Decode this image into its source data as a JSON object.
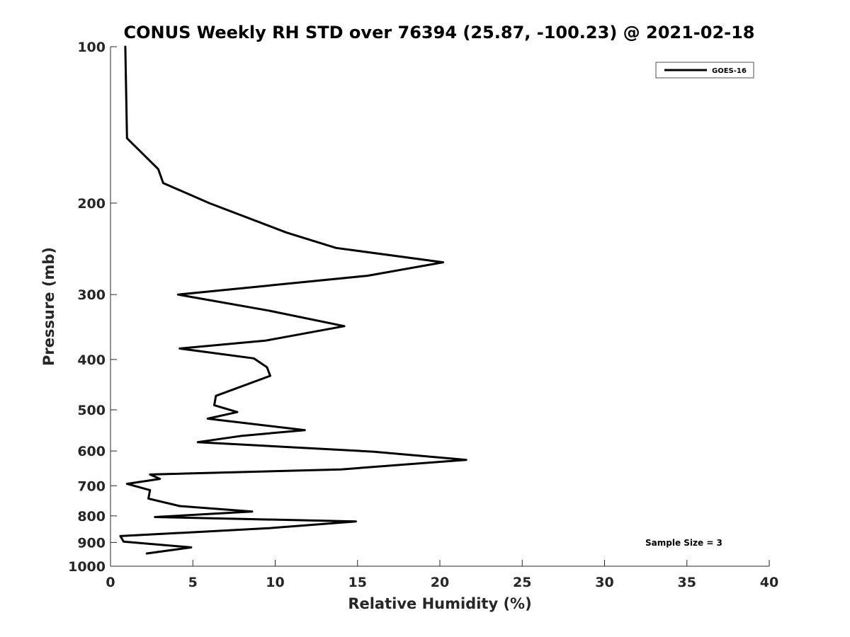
{
  "chart_data": {
    "type": "line",
    "title": "CONUS Weekly RH STD over 76394 (25.87, -100.23) @ 2021-02-18",
    "xlabel": "Relative Humidity (%)",
    "ylabel": "Pressure (mb)",
    "xlim": [
      0,
      40
    ],
    "ylim": [
      100,
      1000
    ],
    "yscale": "log",
    "y_reversed": true,
    "grid": false,
    "legend_position": "top-right",
    "x_ticks": [
      0,
      5,
      10,
      15,
      20,
      25,
      30,
      35,
      40
    ],
    "y_ticks": [
      100,
      200,
      300,
      400,
      500,
      600,
      700,
      800,
      900,
      1000
    ],
    "series": [
      {
        "name": "GOES-16",
        "color": "#000000",
        "x": [
          0.9,
          1.0,
          2.9,
          3.2,
          6.0,
          10.7,
          13.7,
          20.2,
          15.6,
          4.1,
          9.6,
          14.2,
          9.4,
          4.2,
          8.7,
          9.5,
          9.7,
          6.4,
          6.3,
          7.7,
          5.9,
          11.8,
          8.0,
          5.3,
          16.0,
          21.6,
          14.0,
          2.4,
          3.0,
          1.0,
          2.4,
          2.3,
          4.2,
          8.6,
          2.7,
          14.9,
          9.6,
          0.6,
          0.8,
          4.9,
          2.2
        ],
        "y": [
          100,
          150,
          172,
          183,
          200,
          228,
          244,
          260,
          276,
          300,
          322,
          345,
          368,
          381,
          398,
          414,
          430,
          470,
          490,
          505,
          520,
          547,
          561,
          577,
          602,
          624,
          651,
          666,
          679,
          694,
          714,
          741,
          766,
          785,
          804,
          820,
          845,
          875,
          897,
          920,
          945
        ]
      }
    ],
    "annotations": [
      "Sample Size = 3"
    ]
  }
}
